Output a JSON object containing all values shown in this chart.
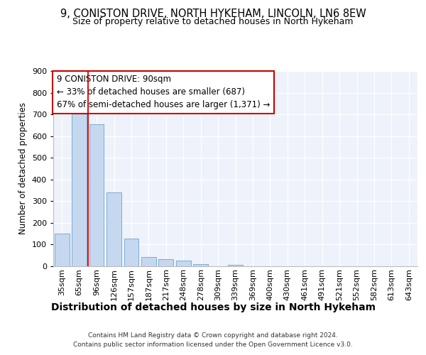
{
  "title": "9, CONISTON DRIVE, NORTH HYKEHAM, LINCOLN, LN6 8EW",
  "subtitle": "Size of property relative to detached houses in North Hykeham",
  "xlabel": "Distribution of detached houses by size in North Hykeham",
  "ylabel": "Number of detached properties",
  "categories": [
    "35sqm",
    "65sqm",
    "96sqm",
    "126sqm",
    "157sqm",
    "187sqm",
    "217sqm",
    "248sqm",
    "278sqm",
    "309sqm",
    "339sqm",
    "369sqm",
    "400sqm",
    "430sqm",
    "461sqm",
    "491sqm",
    "521sqm",
    "552sqm",
    "582sqm",
    "613sqm",
    "643sqm"
  ],
  "values": [
    150,
    715,
    653,
    340,
    127,
    42,
    33,
    27,
    11,
    0,
    8,
    0,
    0,
    0,
    0,
    0,
    0,
    0,
    0,
    0,
    0
  ],
  "bar_color": "#c5d8f0",
  "bar_edge_color": "#7badd4",
  "property_line_color": "#cc0000",
  "annotation_text": "9 CONISTON DRIVE: 90sqm\n← 33% of detached houses are smaller (687)\n67% of semi-detached houses are larger (1,371) →",
  "annotation_box_color": "#cc0000",
  "ylim": [
    0,
    900
  ],
  "yticks": [
    0,
    100,
    200,
    300,
    400,
    500,
    600,
    700,
    800,
    900
  ],
  "background_color": "#eef2fa",
  "footer_line1": "Contains HM Land Registry data © Crown copyright and database right 2024.",
  "footer_line2": "Contains public sector information licensed under the Open Government Licence v3.0.",
  "title_fontsize": 10.5,
  "subtitle_fontsize": 9,
  "xlabel_fontsize": 10,
  "ylabel_fontsize": 8.5,
  "tick_fontsize": 8,
  "annotation_fontsize": 8.5,
  "footer_fontsize": 6.5
}
